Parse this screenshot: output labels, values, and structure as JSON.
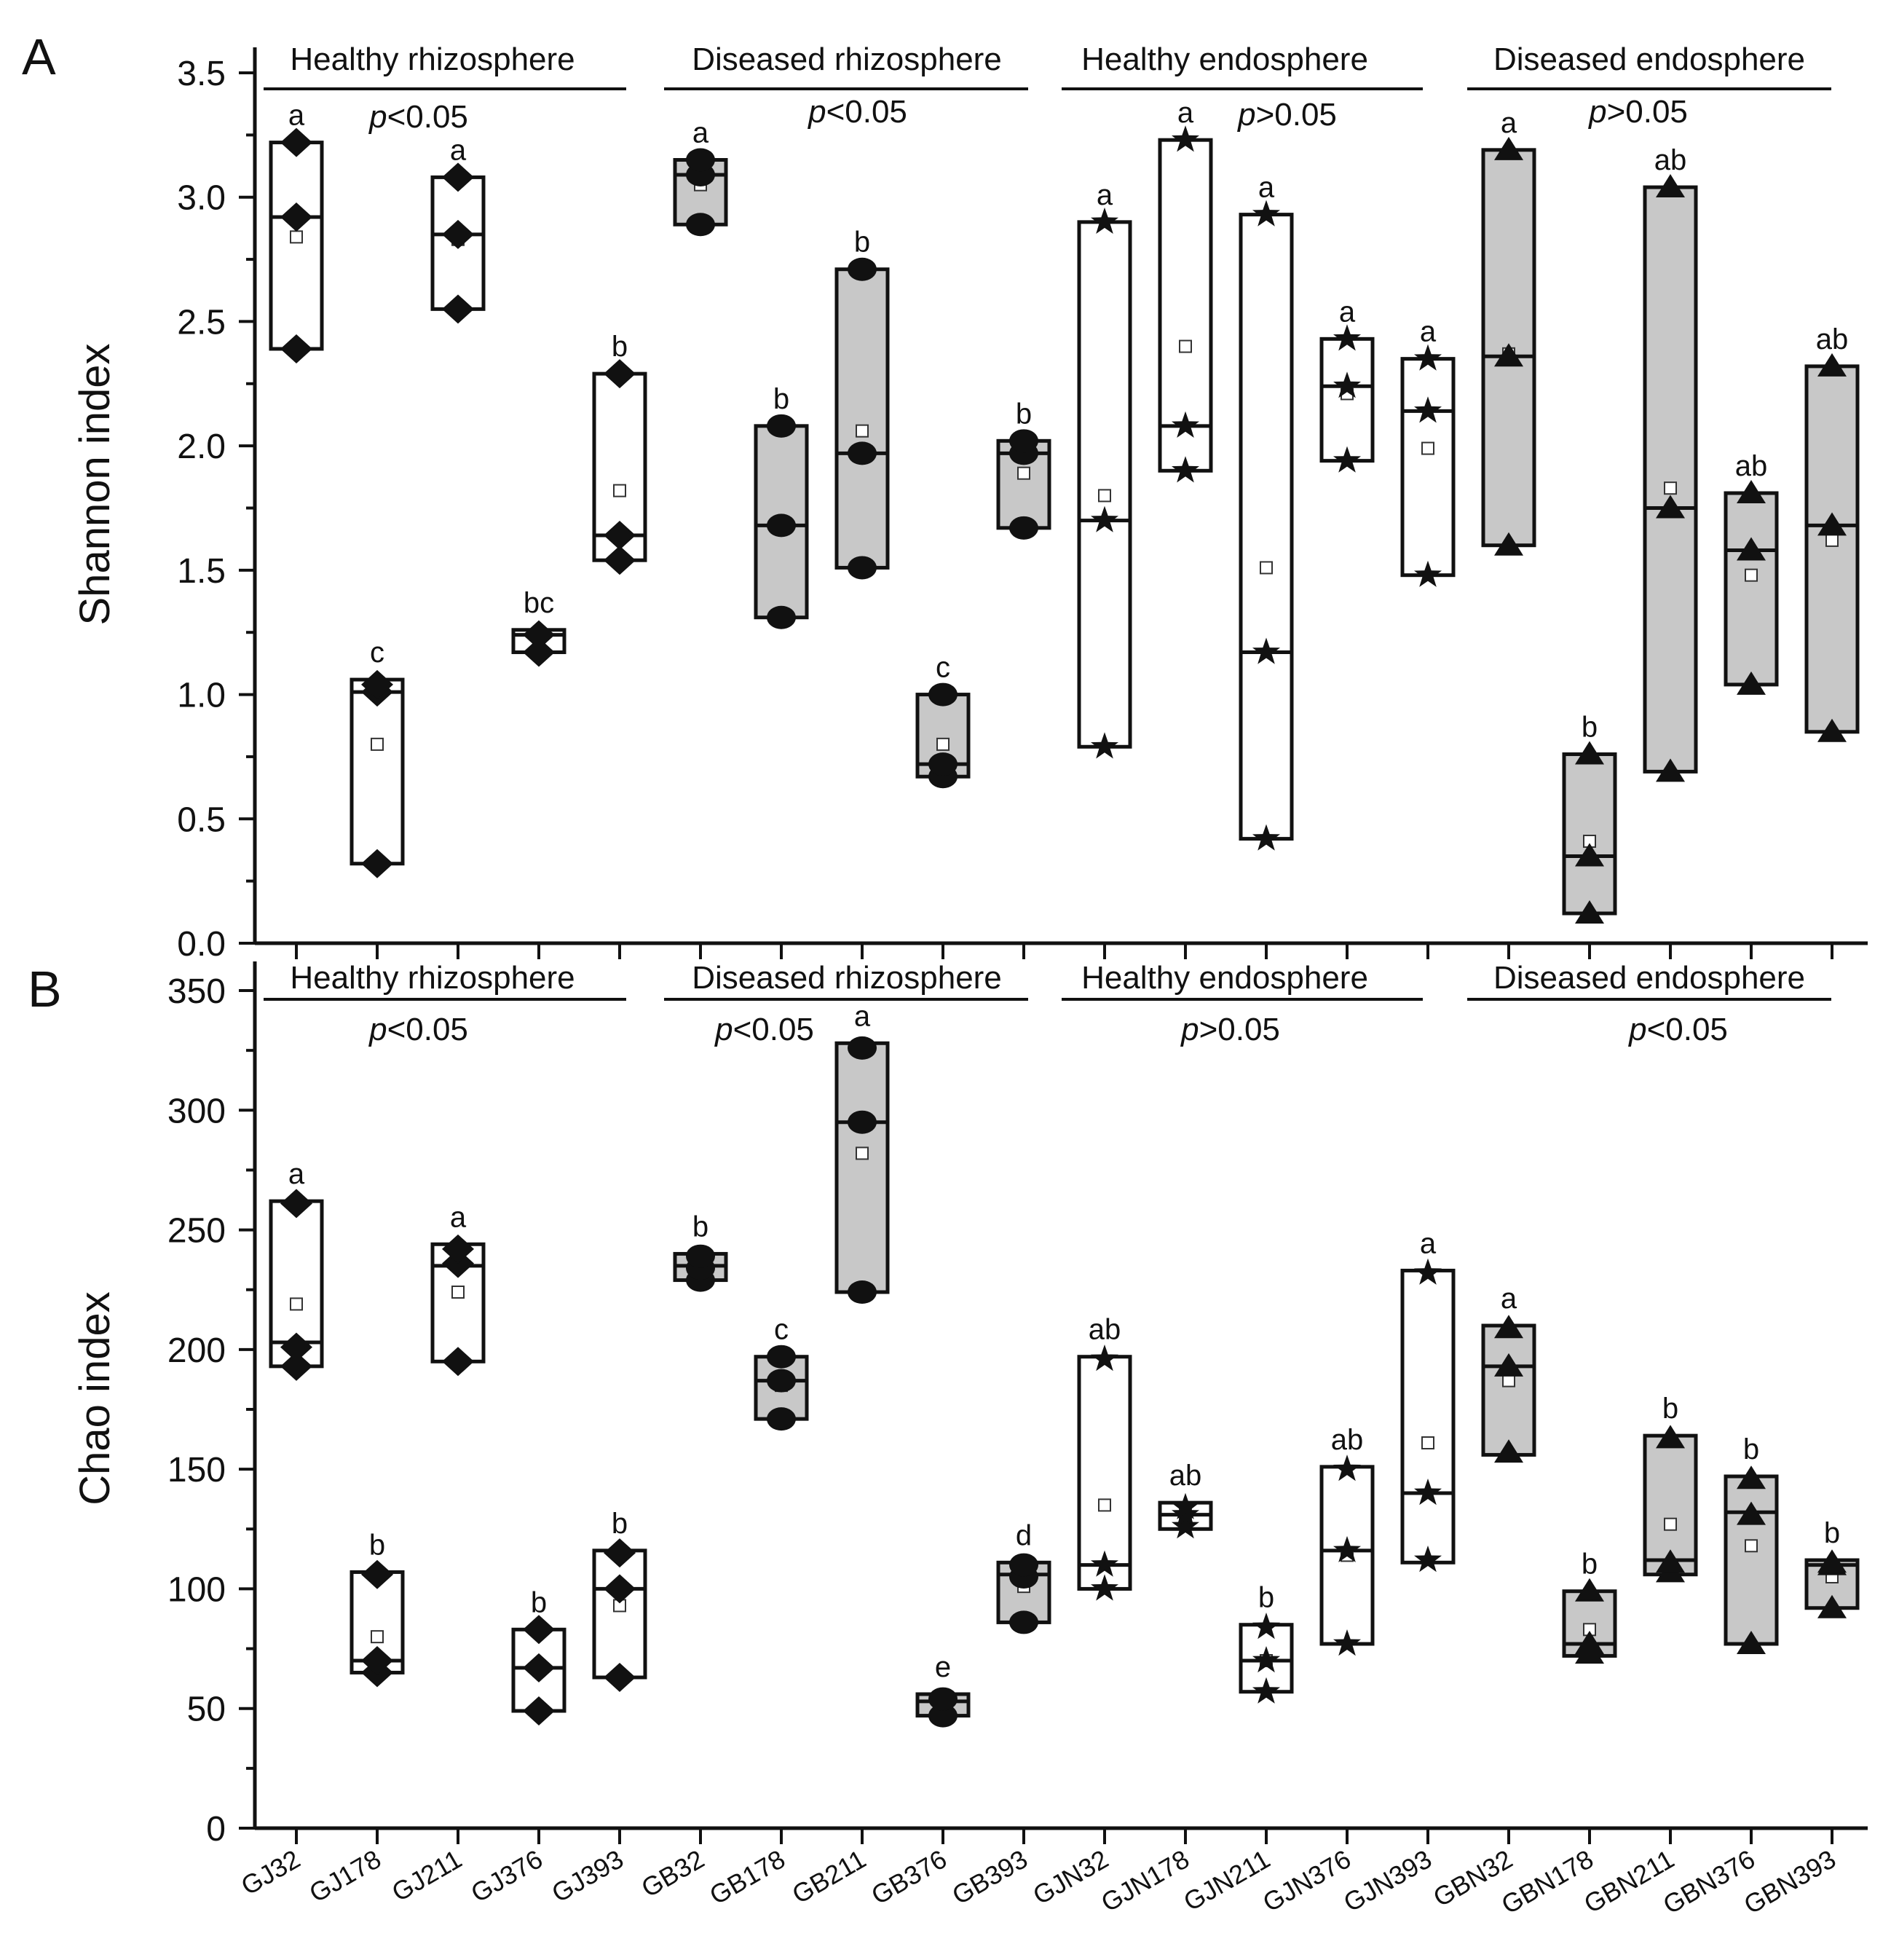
{
  "figure": {
    "panel_labels": [
      "A",
      "B"
    ]
  },
  "categories": [
    "GJ32",
    "GJ178",
    "GJ211",
    "GJ376",
    "GJ393",
    "GB32",
    "GB178",
    "GB211",
    "GB376",
    "GB393",
    "GJN32",
    "GJN178",
    "GJN211",
    "GJN376",
    "GJN393",
    "GBN32",
    "GBN178",
    "GBN211",
    "GBN376",
    "GBN393"
  ],
  "groups": [
    {
      "name": "Healthy rhizosphere",
      "marker": "diamond",
      "fill": "#ffffff"
    },
    {
      "name": "Diseased rhizosphere",
      "marker": "circle",
      "fill": "#c8c8c8"
    },
    {
      "name": "Healthy endosphere",
      "marker": "star",
      "fill": "#ffffff"
    },
    {
      "name": "Diseased endosphere",
      "marker": "triangle",
      "fill": "#c8c8c8"
    }
  ],
  "colors": {
    "box_edge": "#111111",
    "gray_fill": "#c8c8c8",
    "white_fill": "#ffffff",
    "marker": "#111111"
  },
  "chart_data": [
    {
      "type": "box",
      "panel": "A",
      "ylabel": "Shannon index",
      "ylim": [
        0,
        3.5
      ],
      "yticks": [
        "0.0",
        "0.5",
        "1.0",
        "1.5",
        "2.0",
        "2.5",
        "3.0",
        "3.5"
      ],
      "pvalues": [
        {
          "p": "p",
          "rest": "<0.05"
        },
        {
          "p": "p",
          "rest": "<0.05"
        },
        {
          "p": "p",
          "rest": ">0.05"
        },
        {
          "p": "p",
          "rest": ">0.05"
        }
      ],
      "boxes": [
        {
          "min": 2.39,
          "max": 3.22,
          "median": 2.92,
          "mean": 2.84,
          "points": [
            2.39,
            2.92,
            3.22
          ],
          "letter": "a"
        },
        {
          "min": 0.32,
          "max": 1.06,
          "median": 1.01,
          "mean": 0.8,
          "points": [
            0.32,
            1.01,
            1.04
          ],
          "letter": "c"
        },
        {
          "min": 2.55,
          "max": 3.08,
          "median": 2.85,
          "mean": 2.83,
          "points": [
            2.55,
            2.85,
            3.08
          ],
          "letter": "a"
        },
        {
          "min": 1.17,
          "max": 1.26,
          "median": 1.24,
          "mean": 1.21,
          "points": [
            1.17,
            1.24
          ],
          "letter": "bc"
        },
        {
          "min": 1.54,
          "max": 2.29,
          "median": 1.64,
          "mean": 1.82,
          "points": [
            1.54,
            1.64,
            2.29
          ],
          "letter": "b"
        },
        {
          "min": 2.89,
          "max": 3.15,
          "median": 3.09,
          "mean": 3.05,
          "points": [
            2.89,
            3.09,
            3.15
          ],
          "letter": "a"
        },
        {
          "min": 1.31,
          "max": 2.08,
          "median": 1.68,
          "mean": 1.69,
          "points": [
            1.31,
            1.68,
            2.08
          ],
          "letter": "b"
        },
        {
          "min": 1.51,
          "max": 2.71,
          "median": 1.97,
          "mean": 2.06,
          "points": [
            1.51,
            1.97,
            2.71
          ],
          "letter": "b"
        },
        {
          "min": 0.67,
          "max": 1.0,
          "median": 0.72,
          "mean": 0.8,
          "points": [
            0.67,
            0.72,
            1.0
          ],
          "letter": "c"
        },
        {
          "min": 1.67,
          "max": 2.02,
          "median": 1.97,
          "mean": 1.89,
          "points": [
            1.67,
            1.97,
            2.02
          ],
          "letter": "b"
        },
        {
          "min": 0.79,
          "max": 2.9,
          "median": 1.7,
          "mean": 1.8,
          "points": [
            0.79,
            1.7,
            2.9
          ],
          "letter": "a"
        },
        {
          "min": 1.9,
          "max": 3.23,
          "median": 2.08,
          "mean": 2.4,
          "points": [
            1.9,
            2.08,
            3.23
          ],
          "letter": "a"
        },
        {
          "min": 0.42,
          "max": 2.93,
          "median": 1.17,
          "mean": 1.51,
          "points": [
            0.42,
            1.17,
            2.93
          ],
          "letter": "a"
        },
        {
          "min": 1.94,
          "max": 2.43,
          "median": 2.24,
          "mean": 2.21,
          "points": [
            1.94,
            2.24,
            2.43
          ],
          "letter": "a"
        },
        {
          "min": 1.48,
          "max": 2.35,
          "median": 2.14,
          "mean": 1.99,
          "points": [
            1.48,
            2.14,
            2.35
          ],
          "letter": "a"
        },
        {
          "min": 1.6,
          "max": 3.19,
          "median": 2.36,
          "mean": 2.37,
          "points": [
            1.6,
            2.36,
            3.19
          ],
          "letter": "a"
        },
        {
          "min": 0.12,
          "max": 0.76,
          "median": 0.35,
          "mean": 0.41,
          "points": [
            0.12,
            0.35,
            0.76
          ],
          "letter": "b"
        },
        {
          "min": 0.69,
          "max": 3.04,
          "median": 1.75,
          "mean": 1.83,
          "points": [
            0.69,
            1.75,
            3.04
          ],
          "letter": "ab"
        },
        {
          "min": 1.04,
          "max": 1.81,
          "median": 1.58,
          "mean": 1.48,
          "points": [
            1.04,
            1.58,
            1.81
          ],
          "letter": "ab"
        },
        {
          "min": 0.85,
          "max": 2.32,
          "median": 1.68,
          "mean": 1.62,
          "points": [
            0.85,
            1.68,
            2.32
          ],
          "letter": "ab"
        }
      ]
    },
    {
      "type": "box",
      "panel": "B",
      "ylabel": "Chao index",
      "ylim": [
        0,
        350
      ],
      "yticks": [
        "0",
        "50",
        "100",
        "150",
        "200",
        "250",
        "300",
        "350"
      ],
      "pvalues": [
        {
          "p": "p",
          "rest": "<0.05"
        },
        {
          "p": "p",
          "rest": "<0.05"
        },
        {
          "p": "p",
          "rest": ">0.05"
        },
        {
          "p": "p",
          "rest": "<0.05"
        }
      ],
      "boxes": [
        {
          "min": 193,
          "max": 262,
          "median": 203,
          "mean": 219,
          "points": [
            193,
            201,
            261
          ],
          "letter": "a"
        },
        {
          "min": 65,
          "max": 107,
          "median": 70,
          "mean": 80,
          "points": [
            65,
            70,
            106
          ],
          "letter": "b"
        },
        {
          "min": 195,
          "max": 244,
          "median": 235,
          "mean": 224,
          "points": [
            195,
            236,
            242
          ],
          "letter": "a"
        },
        {
          "min": 49,
          "max": 83,
          "median": 67,
          "mean": 66,
          "points": [
            49,
            67,
            83
          ],
          "letter": "b"
        },
        {
          "min": 63,
          "max": 116,
          "median": 100,
          "mean": 93,
          "points": [
            63,
            100,
            115
          ],
          "letter": "b"
        },
        {
          "min": 229,
          "max": 240,
          "median": 235,
          "mean": 235,
          "points": [
            229,
            234,
            239
          ],
          "letter": "b"
        },
        {
          "min": 171,
          "max": 197,
          "median": 187,
          "mean": 185,
          "points": [
            171,
            187,
            197
          ],
          "letter": "c"
        },
        {
          "min": 224,
          "max": 328,
          "median": 295,
          "mean": 282,
          "points": [
            224,
            295,
            326
          ],
          "letter": "a"
        },
        {
          "min": 47,
          "max": 56,
          "median": 53,
          "mean": 52,
          "points": [
            47,
            54
          ],
          "letter": "e"
        },
        {
          "min": 86,
          "max": 111,
          "median": 106,
          "mean": 101,
          "points": [
            86,
            105,
            110
          ],
          "letter": "d"
        },
        {
          "min": 100,
          "max": 197,
          "median": 110,
          "mean": 135,
          "points": [
            100,
            110,
            196
          ],
          "letter": "ab"
        },
        {
          "min": 125,
          "max": 136,
          "median": 131,
          "mean": 131,
          "points": [
            126,
            131,
            134
          ],
          "letter": "ab"
        },
        {
          "min": 57,
          "max": 85,
          "median": 70,
          "mean": 70,
          "points": [
            57,
            70,
            84
          ],
          "letter": "b"
        },
        {
          "min": 77,
          "max": 151,
          "median": 116,
          "mean": 114,
          "points": [
            77,
            116,
            150
          ],
          "letter": "ab"
        },
        {
          "min": 111,
          "max": 233,
          "median": 140,
          "mean": 161,
          "points": [
            112,
            140,
            232
          ],
          "letter": "a"
        },
        {
          "min": 156,
          "max": 210,
          "median": 193,
          "mean": 187,
          "points": [
            157,
            193,
            209
          ],
          "letter": "a"
        },
        {
          "min": 72,
          "max": 99,
          "median": 77,
          "mean": 83,
          "points": [
            73,
            77,
            99
          ],
          "letter": "b"
        },
        {
          "min": 106,
          "max": 164,
          "median": 112,
          "mean": 127,
          "points": [
            107,
            111,
            163
          ],
          "letter": "b"
        },
        {
          "min": 77,
          "max": 147,
          "median": 132,
          "mean": 118,
          "points": [
            77,
            131,
            146
          ],
          "letter": "b"
        },
        {
          "min": 92,
          "max": 112,
          "median": 110,
          "mean": 105,
          "points": [
            92,
            110,
            111
          ],
          "letter": "b"
        }
      ]
    }
  ]
}
